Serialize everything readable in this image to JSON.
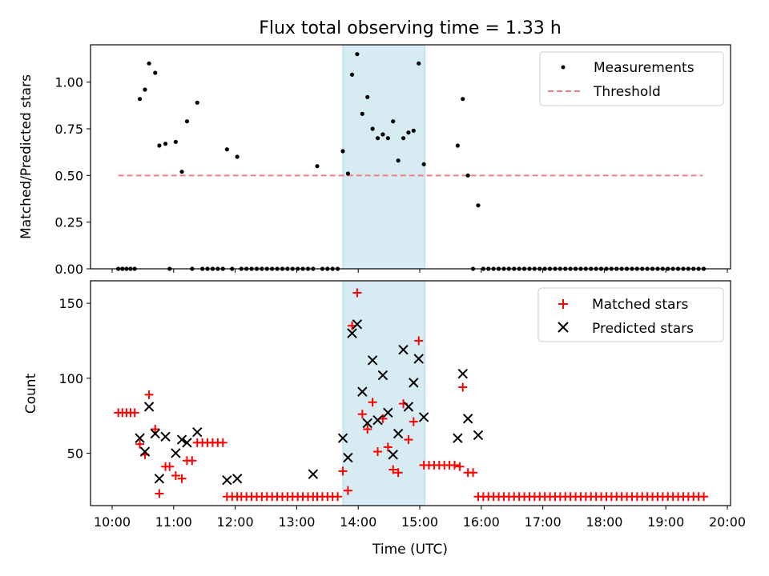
{
  "chart_data": [
    {
      "type": "scatter",
      "title": "Flux total observing time = 1.33 h",
      "xlabel": "",
      "ylabel": "Matched/Predicted stars",
      "ylim": [
        0,
        1.2
      ],
      "xlim": [
        "10:00",
        "20:00"
      ],
      "yticks": [
        "0.00",
        "0.25",
        "0.50",
        "0.75",
        "1.00"
      ],
      "highlight_span": [
        "13:45",
        "15:05"
      ],
      "legend_position": "top-right",
      "series": [
        {
          "name": "Measurements",
          "marker": "dot",
          "color": "#000000",
          "points": [
            [
              "10:06",
              0
            ],
            [
              "10:10",
              0
            ],
            [
              "10:14",
              0
            ],
            [
              "10:18",
              0
            ],
            [
              "10:22",
              0
            ],
            [
              "10:27",
              0.91
            ],
            [
              "10:32",
              0.96
            ],
            [
              "10:36",
              1.1
            ],
            [
              "10:42",
              1.05
            ],
            [
              "10:46",
              0.66
            ],
            [
              "10:52",
              0.67
            ],
            [
              "10:56",
              0
            ],
            [
              "11:02",
              0.68
            ],
            [
              "11:08",
              0.52
            ],
            [
              "11:13",
              0.79
            ],
            [
              "11:18",
              0
            ],
            [
              "11:23",
              0.89
            ],
            [
              "11:28",
              0
            ],
            [
              "11:33",
              0
            ],
            [
              "11:38",
              0
            ],
            [
              "11:43",
              0
            ],
            [
              "11:48",
              0
            ],
            [
              "11:52",
              0.64
            ],
            [
              "11:57",
              0
            ],
            [
              "12:02",
              0.6
            ],
            [
              "12:06",
              0
            ],
            [
              "12:11",
              0
            ],
            [
              "12:16",
              0
            ],
            [
              "12:21",
              0
            ],
            [
              "12:26",
              0
            ],
            [
              "12:31",
              0
            ],
            [
              "12:36",
              0
            ],
            [
              "12:41",
              0
            ],
            [
              "12:46",
              0
            ],
            [
              "12:51",
              0
            ],
            [
              "12:56",
              0
            ],
            [
              "13:01",
              0
            ],
            [
              "13:06",
              0
            ],
            [
              "13:11",
              0
            ],
            [
              "13:16",
              0
            ],
            [
              "13:20",
              0.55
            ],
            [
              "13:25",
              0
            ],
            [
              "13:30",
              0
            ],
            [
              "13:35",
              0
            ],
            [
              "13:40",
              0
            ],
            [
              "13:45",
              0.63
            ],
            [
              "13:50",
              0.51
            ],
            [
              "13:54",
              1.04
            ],
            [
              "13:59",
              1.15
            ],
            [
              "14:04",
              0.83
            ],
            [
              "14:09",
              0.92
            ],
            [
              "14:14",
              0.75
            ],
            [
              "14:19",
              0.7
            ],
            [
              "14:24",
              0.72
            ],
            [
              "14:29",
              0.7
            ],
            [
              "14:34",
              0.79
            ],
            [
              "14:39",
              0.58
            ],
            [
              "14:44",
              0.7
            ],
            [
              "14:49",
              0.73
            ],
            [
              "14:54",
              0.74
            ],
            [
              "14:59",
              1.1
            ],
            [
              "15:04",
              0.56
            ],
            [
              "15:37",
              0.66
            ],
            [
              "15:42",
              0.91
            ],
            [
              "15:47",
              0.5
            ],
            [
              "15:52",
              0
            ],
            [
              "15:57",
              0.34
            ],
            [
              "16:02",
              0
            ],
            [
              "16:07",
              0
            ],
            [
              "16:12",
              0
            ],
            [
              "16:17",
              0
            ],
            [
              "16:22",
              0
            ],
            [
              "16:27",
              0
            ],
            [
              "16:32",
              0
            ],
            [
              "16:37",
              0
            ],
            [
              "16:42",
              0
            ],
            [
              "16:47",
              0
            ],
            [
              "16:52",
              0
            ],
            [
              "16:57",
              0
            ],
            [
              "17:02",
              0
            ],
            [
              "17:07",
              0
            ],
            [
              "17:12",
              0
            ],
            [
              "17:17",
              0
            ],
            [
              "17:22",
              0
            ],
            [
              "17:27",
              0
            ],
            [
              "17:32",
              0
            ],
            [
              "17:37",
              0
            ],
            [
              "17:42",
              0
            ],
            [
              "17:47",
              0
            ],
            [
              "17:52",
              0
            ],
            [
              "17:57",
              0
            ],
            [
              "18:02",
              0
            ],
            [
              "18:07",
              0
            ],
            [
              "18:12",
              0
            ],
            [
              "18:17",
              0
            ],
            [
              "18:22",
              0
            ],
            [
              "18:27",
              0
            ],
            [
              "18:32",
              0
            ],
            [
              "18:37",
              0
            ],
            [
              "18:42",
              0
            ],
            [
              "18:47",
              0
            ],
            [
              "18:52",
              0
            ],
            [
              "18:57",
              0
            ],
            [
              "19:02",
              0
            ],
            [
              "19:07",
              0
            ],
            [
              "19:12",
              0
            ],
            [
              "19:17",
              0
            ],
            [
              "19:22",
              0
            ],
            [
              "19:27",
              0
            ],
            [
              "19:32",
              0
            ],
            [
              "19:37",
              0
            ]
          ]
        },
        {
          "name": "Threshold",
          "marker": "dashed-line",
          "color": "#f08080",
          "points": [
            [
              "10:06",
              0.5
            ],
            [
              "19:36",
              0.5
            ]
          ]
        }
      ]
    },
    {
      "type": "scatter",
      "title": "",
      "xlabel": "Time (UTC)",
      "ylabel": "Count",
      "ylim": [
        15,
        165
      ],
      "xlim": [
        "10:00",
        "20:00"
      ],
      "yticks": [
        "50",
        "100",
        "150"
      ],
      "xticks": [
        "10:00",
        "11:00",
        "12:00",
        "13:00",
        "14:00",
        "15:00",
        "16:00",
        "17:00",
        "18:00",
        "19:00",
        "20:00"
      ],
      "highlight_span": [
        "13:45",
        "15:05"
      ],
      "legend_position": "top-right",
      "series": [
        {
          "name": "Matched stars",
          "marker": "plus",
          "color": "#ff0000",
          "points": [
            [
              "10:06",
              77
            ],
            [
              "10:10",
              77
            ],
            [
              "10:14",
              77
            ],
            [
              "10:18",
              77
            ],
            [
              "10:22",
              77
            ],
            [
              "10:27",
              56
            ],
            [
              "10:32",
              49
            ],
            [
              "10:36",
              89
            ],
            [
              "10:42",
              66
            ],
            [
              "10:46",
              23
            ],
            [
              "10:52",
              41
            ],
            [
              "10:56",
              41
            ],
            [
              "11:02",
              35
            ],
            [
              "11:08",
              33
            ],
            [
              "11:13",
              45
            ],
            [
              "11:18",
              45
            ],
            [
              "11:23",
              57
            ],
            [
              "11:28",
              57
            ],
            [
              "11:33",
              57
            ],
            [
              "11:38",
              57
            ],
            [
              "11:43",
              57
            ],
            [
              "11:48",
              57
            ],
            [
              "11:52",
              21
            ],
            [
              "11:57",
              21
            ],
            [
              "12:02",
              21
            ],
            [
              "12:06",
              21
            ],
            [
              "12:11",
              21
            ],
            [
              "12:16",
              21
            ],
            [
              "12:21",
              21
            ],
            [
              "12:26",
              21
            ],
            [
              "12:31",
              21
            ],
            [
              "12:36",
              21
            ],
            [
              "12:41",
              21
            ],
            [
              "12:46",
              21
            ],
            [
              "12:51",
              21
            ],
            [
              "12:56",
              21
            ],
            [
              "13:01",
              21
            ],
            [
              "13:06",
              21
            ],
            [
              "13:11",
              21
            ],
            [
              "13:16",
              21
            ],
            [
              "13:20",
              21
            ],
            [
              "13:25",
              21
            ],
            [
              "13:30",
              21
            ],
            [
              "13:35",
              21
            ],
            [
              "13:40",
              21
            ],
            [
              "13:45",
              38
            ],
            [
              "13:50",
              25
            ],
            [
              "13:54",
              135
            ],
            [
              "13:59",
              157
            ],
            [
              "14:04",
              76
            ],
            [
              "14:09",
              66
            ],
            [
              "14:14",
              84
            ],
            [
              "14:19",
              51
            ],
            [
              "14:24",
              73
            ],
            [
              "14:29",
              54
            ],
            [
              "14:34",
              39
            ],
            [
              "14:39",
              37
            ],
            [
              "14:44",
              83
            ],
            [
              "14:49",
              59
            ],
            [
              "14:54",
              71
            ],
            [
              "14:59",
              125
            ],
            [
              "15:04",
              42
            ],
            [
              "15:09",
              42
            ],
            [
              "15:14",
              42
            ],
            [
              "15:19",
              42
            ],
            [
              "15:24",
              42
            ],
            [
              "15:29",
              42
            ],
            [
              "15:34",
              42
            ],
            [
              "15:39",
              41
            ],
            [
              "15:42",
              94
            ],
            [
              "15:47",
              37
            ],
            [
              "15:52",
              37
            ],
            [
              "15:57",
              21
            ],
            [
              "16:02",
              21
            ],
            [
              "16:07",
              21
            ],
            [
              "16:12",
              21
            ],
            [
              "16:17",
              21
            ],
            [
              "16:22",
              21
            ],
            [
              "16:27",
              21
            ],
            [
              "16:32",
              21
            ],
            [
              "16:37",
              21
            ],
            [
              "16:42",
              21
            ],
            [
              "16:47",
              21
            ],
            [
              "16:52",
              21
            ],
            [
              "16:57",
              21
            ],
            [
              "17:02",
              21
            ],
            [
              "17:07",
              21
            ],
            [
              "17:12",
              21
            ],
            [
              "17:17",
              21
            ],
            [
              "17:22",
              21
            ],
            [
              "17:27",
              21
            ],
            [
              "17:32",
              21
            ],
            [
              "17:37",
              21
            ],
            [
              "17:42",
              21
            ],
            [
              "17:47",
              21
            ],
            [
              "17:52",
              21
            ],
            [
              "17:57",
              21
            ],
            [
              "18:02",
              21
            ],
            [
              "18:07",
              21
            ],
            [
              "18:12",
              21
            ],
            [
              "18:17",
              21
            ],
            [
              "18:22",
              21
            ],
            [
              "18:27",
              21
            ],
            [
              "18:32",
              21
            ],
            [
              "18:37",
              21
            ],
            [
              "18:42",
              21
            ],
            [
              "18:47",
              21
            ],
            [
              "18:52",
              21
            ],
            [
              "18:57",
              21
            ],
            [
              "19:02",
              21
            ],
            [
              "19:07",
              21
            ],
            [
              "19:12",
              21
            ],
            [
              "19:17",
              21
            ],
            [
              "19:22",
              21
            ],
            [
              "19:27",
              21
            ],
            [
              "19:32",
              21
            ],
            [
              "19:37",
              21
            ]
          ]
        },
        {
          "name": "Predicted stars",
          "marker": "cross",
          "color": "#000000",
          "points": [
            [
              "10:27",
              60
            ],
            [
              "10:32",
              51
            ],
            [
              "10:36",
              81
            ],
            [
              "10:42",
              63
            ],
            [
              "10:46",
              33
            ],
            [
              "10:52",
              61
            ],
            [
              "11:02",
              50
            ],
            [
              "11:08",
              59
            ],
            [
              "11:13",
              57
            ],
            [
              "11:23",
              64
            ],
            [
              "11:52",
              32
            ],
            [
              "12:02",
              33
            ],
            [
              "13:16",
              36
            ],
            [
              "13:45",
              60
            ],
            [
              "13:50",
              47
            ],
            [
              "13:54",
              130
            ],
            [
              "13:59",
              136
            ],
            [
              "14:04",
              91
            ],
            [
              "14:09",
              70
            ],
            [
              "14:14",
              112
            ],
            [
              "14:19",
              72
            ],
            [
              "14:24",
              102
            ],
            [
              "14:29",
              77
            ],
            [
              "14:34",
              49
            ],
            [
              "14:39",
              63
            ],
            [
              "14:44",
              119
            ],
            [
              "14:49",
              81
            ],
            [
              "14:54",
              97
            ],
            [
              "14:59",
              113
            ],
            [
              "15:04",
              74
            ],
            [
              "15:37",
              60
            ],
            [
              "15:42",
              103
            ],
            [
              "15:47",
              73
            ],
            [
              "15:57",
              62
            ]
          ]
        }
      ]
    }
  ]
}
